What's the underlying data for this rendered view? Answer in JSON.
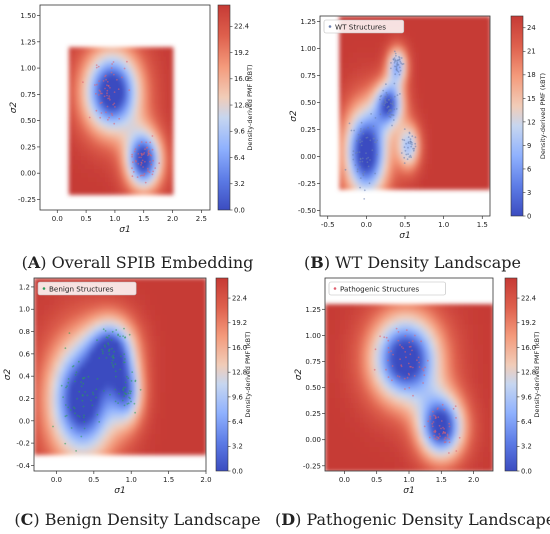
{
  "colors": {
    "cmap": [
      "#3b4cc0",
      "#5d7ce6",
      "#8fb1fe",
      "#c6d6f0",
      "#f1ccb8",
      "#f49a7b",
      "#de604d",
      "#c63a35"
    ],
    "points": "#e06070",
    "points_benign": "#2a9d5a",
    "points_wt": "#6a7fb0"
  },
  "chart_data": [
    {
      "id": "A",
      "type": "heatmap",
      "title": "",
      "caption": {
        "letter": "A",
        "text": "Overall SPIB Embedding"
      },
      "xlabel": "σ1",
      "ylabel": "σ2",
      "xlim": [
        -0.3,
        2.65
      ],
      "ylim": [
        -0.35,
        1.6
      ],
      "xticks": [
        "0.0",
        "0.5",
        "1.0",
        "1.5",
        "2.0",
        "2.5"
      ],
      "xtick_values": [
        0,
        0.5,
        1,
        1.5,
        2,
        2.5
      ],
      "yticks": [
        "-0.25",
        "0.00",
        "0.25",
        "0.50",
        "0.75",
        "1.00",
        "1.25",
        "1.50"
      ],
      "ytick_values": [
        -0.25,
        0,
        0.25,
        0.5,
        0.75,
        1,
        1.25,
        1.5
      ],
      "grid_extent": {
        "x": [
          0.2,
          2.0
        ],
        "y": [
          -0.2,
          1.2
        ]
      },
      "wells": [
        {
          "x": 0.95,
          "y": 0.78,
          "depth": 1.0,
          "sx": 0.35,
          "sy": 0.28
        },
        {
          "x": 1.5,
          "y": 0.13,
          "depth": 0.95,
          "sx": 0.22,
          "sy": 0.2
        }
      ],
      "colorbar": {
        "label": "Density-derived PMF (kBT)",
        "ticks": [
          "0.0",
          "3.2",
          "6.4",
          "9.6",
          "12.8",
          "16.0",
          "19.2",
          "22.4"
        ],
        "tick_values": [
          0,
          3.2,
          6.4,
          9.6,
          12.8,
          16.0,
          19.2,
          22.4
        ],
        "max": 25.0
      },
      "legend": null,
      "points_color": "#e06070"
    },
    {
      "id": "B",
      "type": "heatmap",
      "title": "",
      "caption": {
        "letter": "B",
        "text": "WT Density Landscape"
      },
      "xlabel": "σ1",
      "ylabel": "σ2",
      "xlim": [
        -0.6,
        1.6
      ],
      "ylim": [
        -0.55,
        1.3
      ],
      "xticks": [
        "-0.5",
        "0.0",
        "0.5",
        "1.0",
        "1.5"
      ],
      "xtick_values": [
        -0.5,
        0,
        0.5,
        1,
        1.5
      ],
      "yticks": [
        "-0.50",
        "-0.25",
        "0.00",
        "0.25",
        "0.50",
        "0.75",
        "1.00",
        "1.25"
      ],
      "ytick_values": [
        -0.5,
        -0.25,
        0,
        0.25,
        0.5,
        0.75,
        1,
        1.25
      ],
      "grid_extent": {
        "x": [
          -0.35,
          1.6
        ],
        "y": [
          -0.3,
          1.3
        ]
      },
      "wells": [
        {
          "x": 0.0,
          "y": 0.05,
          "depth": 1.0,
          "sx": 0.2,
          "sy": 0.3
        },
        {
          "x": 0.3,
          "y": 0.5,
          "depth": 0.8,
          "sx": 0.13,
          "sy": 0.15
        },
        {
          "x": 0.4,
          "y": 0.85,
          "depth": 0.65,
          "sx": 0.09,
          "sy": 0.12
        },
        {
          "x": 0.55,
          "y": 0.1,
          "depth": 0.6,
          "sx": 0.1,
          "sy": 0.15
        }
      ],
      "colorbar": {
        "label": "Density-derived PMF (kBT)",
        "ticks": [
          "0",
          "3",
          "6",
          "9",
          "12",
          "15",
          "18",
          "21",
          "24"
        ],
        "tick_values": [
          0,
          3,
          6,
          9,
          12,
          15,
          18,
          21,
          24
        ],
        "max": 25.5
      },
      "legend": "WT Structures",
      "points_color": "#6a7fb0"
    },
    {
      "id": "C",
      "type": "heatmap",
      "title": "",
      "caption": {
        "letter": "C",
        "text": "Benign Density Landscape"
      },
      "xlabel": "σ1",
      "ylabel": "σ2",
      "xlim": [
        -0.3,
        2.0
      ],
      "ylim": [
        -0.45,
        1.28
      ],
      "xticks": [
        "0.0",
        "0.5",
        "1.0",
        "1.5",
        "2.0"
      ],
      "xtick_values": [
        0,
        0.5,
        1,
        1.5,
        2
      ],
      "yticks": [
        "-0.4",
        "-0.2",
        "0.0",
        "0.2",
        "0.4",
        "0.6",
        "0.8",
        "1.0",
        "1.2"
      ],
      "ytick_values": [
        -0.4,
        -0.2,
        0,
        0.2,
        0.4,
        0.6,
        0.8,
        1.0,
        1.2
      ],
      "grid_extent": {
        "x": [
          -0.3,
          2.0
        ],
        "y": [
          -0.3,
          1.28
        ]
      },
      "wells": [
        {
          "x": 0.35,
          "y": 0.2,
          "depth": 1.0,
          "sx": 0.32,
          "sy": 0.38
        },
        {
          "x": 0.75,
          "y": 0.65,
          "depth": 0.75,
          "sx": 0.22,
          "sy": 0.2
        },
        {
          "x": 0.95,
          "y": 0.25,
          "depth": 0.6,
          "sx": 0.15,
          "sy": 0.2
        }
      ],
      "colorbar": {
        "label": "Density-derived PMF (kBT)",
        "ticks": [
          "0.0",
          "3.2",
          "6.4",
          "9.6",
          "12.8",
          "16.0",
          "19.2",
          "22.4"
        ],
        "tick_values": [
          0,
          3.2,
          6.4,
          9.6,
          12.8,
          16.0,
          19.2,
          22.4
        ],
        "max": 25.0
      },
      "legend": "Benign Structures",
      "points_color": "#2a9d5a"
    },
    {
      "id": "D",
      "type": "heatmap",
      "title": "",
      "caption": {
        "letter": "D",
        "text": "Pathogenic Density Landscape"
      },
      "xlabel": "σ1",
      "ylabel": "σ2",
      "xlim": [
        -0.3,
        2.3
      ],
      "ylim": [
        -0.3,
        1.55
      ],
      "xticks": [
        "0.0",
        "0.5",
        "1.0",
        "1.5",
        "2.0"
      ],
      "xtick_values": [
        0,
        0.5,
        1,
        1.5,
        2
      ],
      "yticks": [
        "-0.25",
        "0.00",
        "0.25",
        "0.50",
        "0.75",
        "1.00",
        "1.25"
      ],
      "ytick_values": [
        -0.25,
        0,
        0.25,
        0.5,
        0.75,
        1,
        1.25
      ],
      "grid_extent": {
        "x": [
          -0.3,
          2.3
        ],
        "y": [
          -0.3,
          1.3
        ]
      },
      "wells": [
        {
          "x": 0.95,
          "y": 0.78,
          "depth": 1.0,
          "sx": 0.38,
          "sy": 0.3
        },
        {
          "x": 1.5,
          "y": 0.13,
          "depth": 0.95,
          "sx": 0.25,
          "sy": 0.22
        }
      ],
      "colorbar": {
        "label": "Density-derived PMF (kBT)",
        "ticks": [
          "0.0",
          "3.2",
          "6.4",
          "9.6",
          "12.8",
          "16.0",
          "19.2",
          "22.4"
        ],
        "tick_values": [
          0,
          3.2,
          6.4,
          9.6,
          12.8,
          16.0,
          19.2,
          22.4
        ],
        "max": 25.0
      },
      "legend": "Pathogenic Structures",
      "points_color": "#e06070"
    }
  ]
}
